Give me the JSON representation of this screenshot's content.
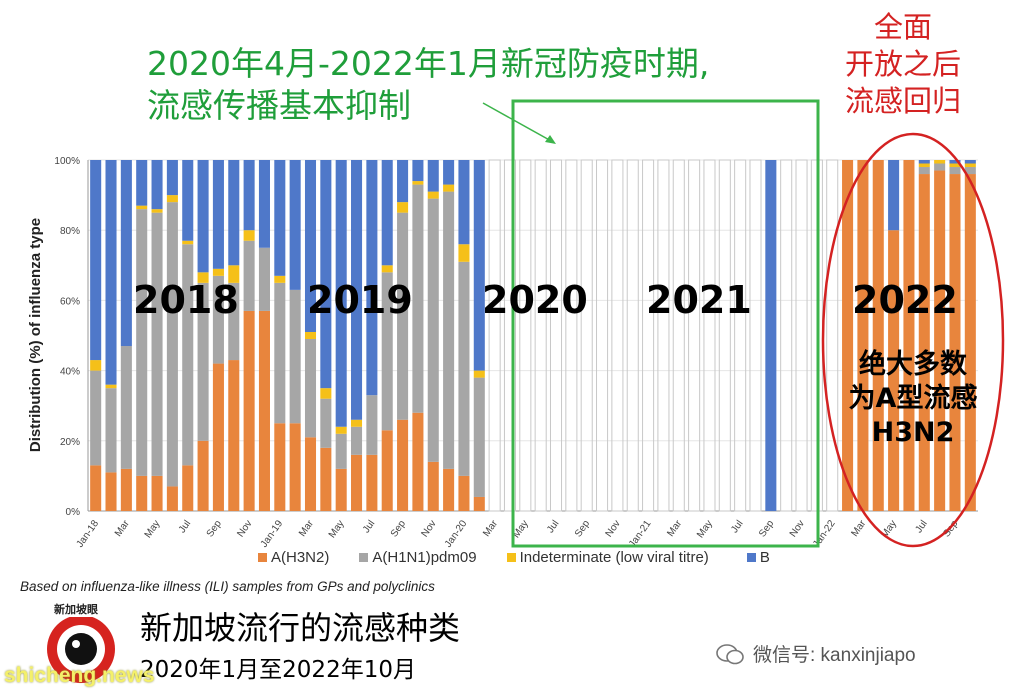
{
  "headline": {
    "line1": "2020年4月-2022年1月新冠防疫时期,",
    "line2": "流感传播基本抑制"
  },
  "red_note": {
    "line1": "全面",
    "line2": "开放之后",
    "line3": "流感回归"
  },
  "year_labels": [
    "2018",
    "2019",
    "2020",
    "2021",
    "2022"
  ],
  "note_2022": {
    "line1": "绝大多数",
    "line2": "为A型流感",
    "line3": "H3N2"
  },
  "source_note": "Based on influenza-like illness (ILI) samples from GPs and polyclinics",
  "bottom": {
    "title": "新加坡流行的流感种类",
    "subtitle": "2020年1月至2022年10月"
  },
  "logo_text": "新加坡眼",
  "wechat": "微信号: kanxinjiapo",
  "watermark": "shicheng.news",
  "colors": {
    "h3n2": "#e8853d",
    "h1n1": "#a6a6a6",
    "indeterminate": "#f5c019",
    "b": "#4f78c9",
    "highlight_green": "#3cb44b",
    "highlight_red": "#d42222"
  },
  "chart_data": {
    "type": "bar",
    "stacked": true,
    "ylabel": "Distribution (%) of influenza  type",
    "ylim": [
      0,
      100
    ],
    "yticks": [
      "0%",
      "20%",
      "40%",
      "60%",
      "80%",
      "100%"
    ],
    "x_tick_labels": [
      "Jan-18",
      "Mar",
      "May",
      "Jul",
      "Sep",
      "Nov",
      "Jan-19",
      "Mar",
      "May",
      "Jul",
      "Sep",
      "Nov",
      "Jan-20",
      "Mar",
      "May",
      "Jul",
      "Sep",
      "Nov",
      "Jan-21",
      "Mar",
      "May",
      "Jul",
      "Sep",
      "Nov",
      "Jan-22",
      "Mar",
      "May",
      "Jul",
      "Sep"
    ],
    "legend": [
      "A(H3N2)",
      "A(H1N1)pdm09",
      "Indeterminate (low viral titre)",
      "B"
    ],
    "series": [
      {
        "name": "A(H3N2)",
        "values": [
          13,
          11,
          12,
          10,
          10,
          7,
          13,
          20,
          42,
          43,
          57,
          57,
          25,
          25,
          21,
          18,
          12,
          16,
          16,
          23,
          26,
          28,
          14,
          12,
          10,
          4,
          0,
          0,
          0,
          0,
          0,
          0,
          0,
          0,
          0,
          0,
          0,
          0,
          0,
          0,
          0,
          0,
          0,
          0,
          0,
          0,
          0,
          0,
          0,
          100,
          100,
          100,
          80,
          100,
          96,
          97,
          96,
          96
        ]
      },
      {
        "name": "A(H1N1)pdm09",
        "values": [
          27,
          24,
          35,
          76,
          75,
          81,
          63,
          45,
          25,
          22,
          20,
          18,
          40,
          38,
          28,
          14,
          10,
          8,
          17,
          45,
          59,
          65,
          75,
          79,
          61,
          34,
          0,
          0,
          0,
          0,
          0,
          0,
          0,
          0,
          0,
          0,
          0,
          0,
          0,
          0,
          0,
          0,
          0,
          0,
          0,
          0,
          0,
          0,
          0,
          0,
          0,
          0,
          0,
          0,
          2,
          2,
          2,
          2
        ]
      },
      {
        "name": "Indeterminate (low viral titre)",
        "values": [
          3,
          1,
          0,
          1,
          1,
          2,
          1,
          3,
          2,
          5,
          3,
          0,
          2,
          0,
          2,
          3,
          2,
          2,
          0,
          2,
          3,
          1,
          2,
          2,
          5,
          2,
          0,
          0,
          0,
          0,
          0,
          0,
          0,
          0,
          0,
          0,
          0,
          0,
          0,
          0,
          0,
          0,
          0,
          0,
          0,
          0,
          0,
          0,
          0,
          0,
          0,
          0,
          0,
          0,
          1,
          1,
          1,
          1
        ]
      },
      {
        "name": "B",
        "values": [
          57,
          64,
          53,
          13,
          14,
          10,
          23,
          32,
          31,
          30,
          20,
          25,
          33,
          37,
          49,
          65,
          76,
          74,
          67,
          30,
          12,
          6,
          9,
          7,
          24,
          60,
          0,
          0,
          0,
          0,
          0,
          0,
          0,
          0,
          0,
          0,
          0,
          0,
          0,
          0,
          0,
          0,
          0,
          0,
          100,
          0,
          0,
          0,
          0,
          0,
          0,
          0,
          20,
          0,
          1,
          0,
          1,
          1
        ]
      }
    ]
  }
}
